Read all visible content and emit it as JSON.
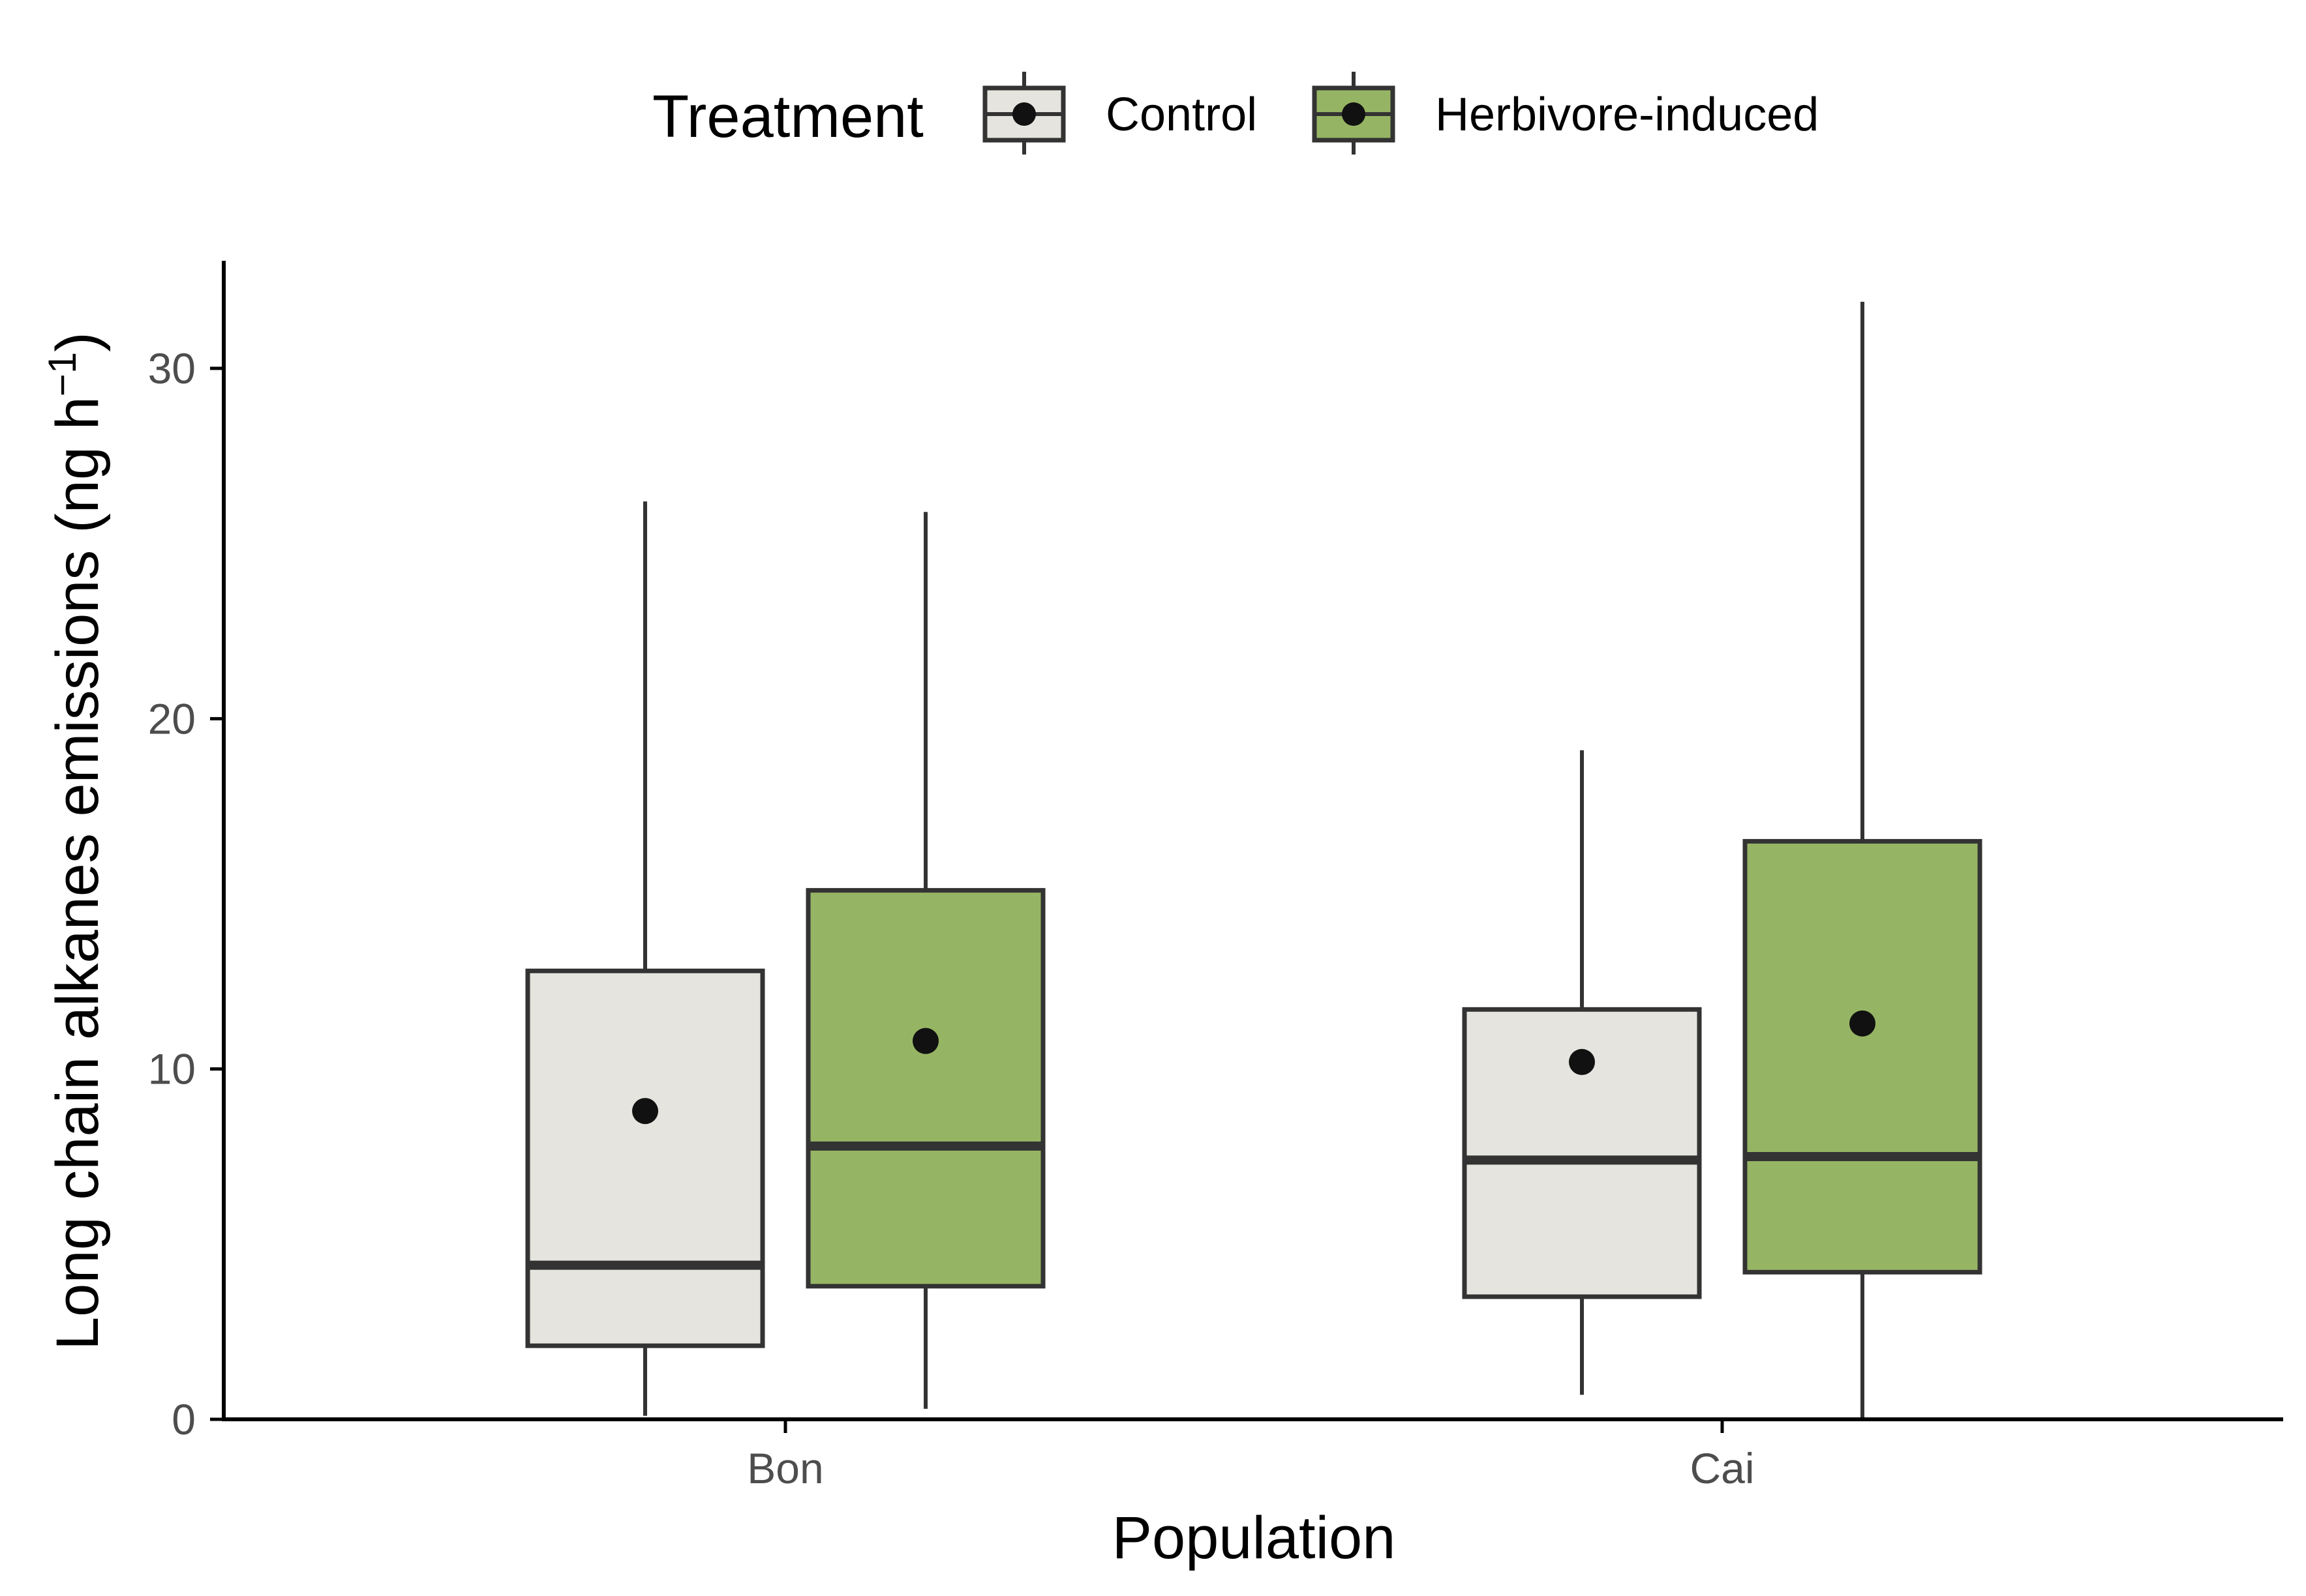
{
  "chart_data": {
    "type": "box",
    "xlabel": "Population",
    "ylabel": "Long chain alkanes emissions (ng h",
    "ylabel_exponent": "−1",
    "ylabel_close": ")",
    "ylim": [
      0,
      33
    ],
    "yticks": [
      0,
      10,
      20,
      30
    ],
    "grid": false,
    "legend": {
      "title": "Treatment",
      "placement": "top"
    },
    "categories": [
      "Bon",
      "Cai"
    ],
    "series": [
      {
        "name": "Control",
        "color": "#e5e4de",
        "boxes": [
          {
            "category": "Bon",
            "min": 0.1,
            "q1": 2.1,
            "median": 4.4,
            "q3": 12.8,
            "max": 26.2,
            "mean": 8.8
          },
          {
            "category": "Cai",
            "min": 0.7,
            "q1": 3.5,
            "median": 7.4,
            "q3": 11.7,
            "max": 19.1,
            "mean": 10.2
          }
        ]
      },
      {
        "name": "Herbivore-induced",
        "color": "#96b564",
        "boxes": [
          {
            "category": "Bon",
            "min": 0.3,
            "q1": 3.8,
            "median": 7.8,
            "q3": 15.1,
            "max": 25.9,
            "mean": 10.8
          },
          {
            "category": "Cai",
            "min": 0.0,
            "q1": 4.2,
            "median": 7.5,
            "q3": 16.5,
            "max": 31.9,
            "mean": 11.3
          }
        ]
      }
    ]
  },
  "colors": {
    "outline": "#333333",
    "axis": "#000000",
    "mean_point": "#111111"
  }
}
